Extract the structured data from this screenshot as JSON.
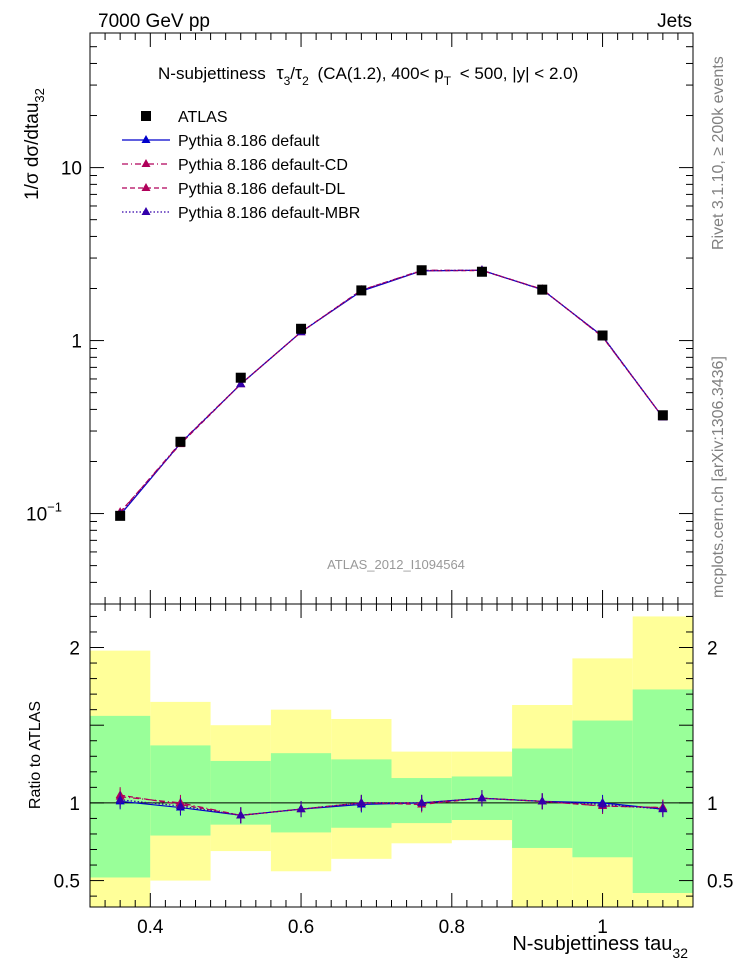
{
  "header": {
    "left": "7000 GeV pp",
    "right": "Jets"
  },
  "side_labels": {
    "rivet": "Rivet 3.1.10, ≥ 200k events",
    "mcplots": "mcplots.cern.ch [arXiv:1306.3436]"
  },
  "analysis_id": "ATLAS_2012_I1094564",
  "chart_data": [
    {
      "type": "line",
      "panel": "main",
      "title": "N-subjettiness  τ₃/τ₂ (CA(1.2), 400< p_T < 500, |y| < 2.0)",
      "title_parts": {
        "tau3": "τ",
        "sub3": "3",
        "slash": "/",
        "tau2": "τ",
        "sub2": "2",
        "pre": "N-subjettiness",
        "mid": "(CA(1.2), 400< p",
        "pt_sub": "T",
        "post": "< 500, |y| < 2.0)"
      },
      "ylabel": "1/σ dσ/dtau",
      "ylabel_sub": "32",
      "yscale": "log",
      "xlim": [
        0.32,
        1.12
      ],
      "ylim": [
        0.03,
        60
      ],
      "y_ticks": [
        {
          "value": 0.1,
          "label": "10",
          "sup": "−1"
        },
        {
          "value": 1,
          "label": "1",
          "sup": ""
        },
        {
          "value": 10,
          "label": "10",
          "sup": ""
        }
      ],
      "legend": {
        "placement": "top-left",
        "entries": [
          {
            "label": "ATLAS",
            "color": "#000000",
            "marker": "square",
            "dash": "none"
          },
          {
            "label": "Pythia 8.186 default",
            "color": "#0000cc",
            "marker": "triangle",
            "dash": "solid"
          },
          {
            "label": "Pythia 8.186 default-CD",
            "color": "#b0005a",
            "marker": "triangle",
            "dash": "dashdot"
          },
          {
            "label": "Pythia 8.186 default-DL",
            "color": "#b0005a",
            "marker": "triangle",
            "dash": "dash"
          },
          {
            "label": "Pythia 8.186 default-MBR",
            "color": "#3300aa",
            "marker": "triangle",
            "dash": "dot"
          }
        ]
      },
      "x": [
        0.36,
        0.44,
        0.52,
        0.6,
        0.68,
        0.76,
        0.84,
        0.92,
        1.0,
        1.08
      ],
      "series": [
        {
          "name": "ATLAS",
          "values": [
            0.097,
            0.26,
            0.61,
            1.17,
            1.95,
            2.55,
            2.5,
            1.97,
            1.07,
            0.37
          ]
        },
        {
          "name": "Pythia 8.186 default",
          "values": [
            0.098,
            0.255,
            0.56,
            1.12,
            1.93,
            2.53,
            2.55,
            1.97,
            1.06,
            0.36
          ]
        },
        {
          "name": "Pythia 8.186 default-CD",
          "values": [
            0.101,
            0.257,
            0.56,
            1.12,
            1.95,
            2.55,
            2.55,
            1.98,
            1.05,
            0.36
          ]
        },
        {
          "name": "Pythia 8.186 default-DL",
          "values": [
            0.102,
            0.252,
            0.56,
            1.12,
            1.96,
            2.53,
            2.54,
            1.98,
            1.05,
            0.36
          ]
        },
        {
          "name": "Pythia 8.186 default-MBR",
          "values": [
            0.099,
            0.255,
            0.56,
            1.12,
            1.95,
            2.54,
            2.55,
            1.97,
            1.06,
            0.36
          ]
        }
      ]
    },
    {
      "type": "line",
      "panel": "ratio",
      "xlabel": "N-subjettiness tau",
      "xlabel_sub": "32",
      "ylabel": "Ratio to ATLAS",
      "xlim": [
        0.32,
        1.12
      ],
      "ylim": [
        0.33,
        2.28
      ],
      "x_ticks": [
        {
          "value": 0.4,
          "label": "0.4"
        },
        {
          "value": 0.6,
          "label": "0.6"
        },
        {
          "value": 0.8,
          "label": "0.8"
        },
        {
          "value": 1.0,
          "label": "1"
        }
      ],
      "y_ticks": [
        {
          "value": 0.5,
          "label": "0.5"
        },
        {
          "value": 1,
          "label": "1"
        },
        {
          "value": 2,
          "label": "2"
        }
      ],
      "bins": [
        {
          "lo": 0.32,
          "hi": 0.4,
          "green": [
            0.52,
            1.56
          ],
          "yellow": [
            0.33,
            1.98
          ]
        },
        {
          "lo": 0.4,
          "hi": 0.48,
          "green": [
            0.79,
            1.37
          ],
          "yellow": [
            0.5,
            1.65
          ]
        },
        {
          "lo": 0.48,
          "hi": 0.56,
          "green": [
            0.86,
            1.27
          ],
          "yellow": [
            0.69,
            1.5
          ]
        },
        {
          "lo": 0.56,
          "hi": 0.64,
          "green": [
            0.81,
            1.32
          ],
          "yellow": [
            0.56,
            1.6
          ]
        },
        {
          "lo": 0.64,
          "hi": 0.72,
          "green": [
            0.84,
            1.28
          ],
          "yellow": [
            0.64,
            1.54
          ]
        },
        {
          "lo": 0.72,
          "hi": 0.8,
          "green": [
            0.87,
            1.16
          ],
          "yellow": [
            0.74,
            1.33
          ]
        },
        {
          "lo": 0.8,
          "hi": 0.88,
          "green": [
            0.89,
            1.17
          ],
          "yellow": [
            0.76,
            1.33
          ]
        },
        {
          "lo": 0.88,
          "hi": 0.96,
          "green": [
            0.71,
            1.35
          ],
          "yellow": [
            0.33,
            1.63
          ]
        },
        {
          "lo": 0.96,
          "hi": 1.04,
          "green": [
            0.65,
            1.53
          ],
          "yellow": [
            0.33,
            1.93
          ]
        },
        {
          "lo": 1.04,
          "hi": 1.12,
          "green": [
            0.42,
            1.73
          ],
          "yellow": [
            0.33,
            2.2
          ]
        }
      ],
      "x": [
        0.36,
        0.44,
        0.52,
        0.6,
        0.68,
        0.76,
        0.84,
        0.92,
        1.0,
        1.08
      ],
      "series": [
        {
          "name": "Pythia 8.186 default",
          "values": [
            1.01,
            0.97,
            0.92,
            0.96,
            0.99,
            1.0,
            1.03,
            1.01,
            1.0,
            0.96
          ]
        },
        {
          "name": "Pythia 8.186 default-CD",
          "values": [
            1.04,
            1.0,
            0.92,
            0.96,
            1.0,
            1.0,
            1.03,
            1.01,
            0.98,
            0.97
          ]
        },
        {
          "name": "Pythia 8.186 default-DL",
          "values": [
            1.05,
            0.99,
            0.92,
            0.96,
            1.0,
            0.99,
            1.03,
            1.01,
            0.98,
            0.97
          ]
        },
        {
          "name": "Pythia 8.186 default-MBR",
          "values": [
            1.02,
            0.98,
            0.92,
            0.96,
            1.0,
            1.0,
            1.03,
            1.01,
            0.99,
            0.96
          ]
        }
      ]
    }
  ]
}
